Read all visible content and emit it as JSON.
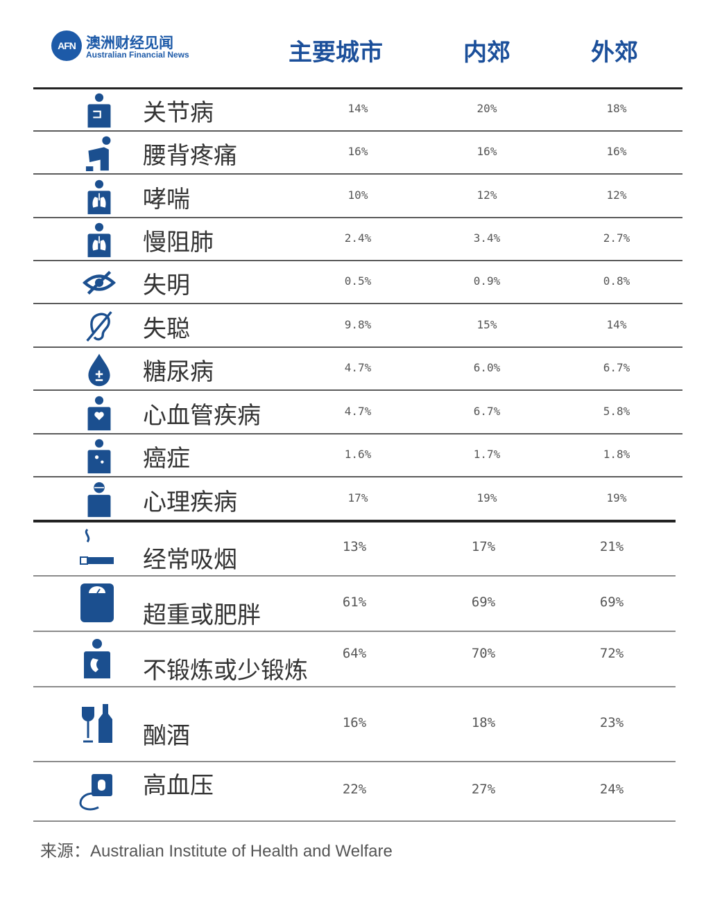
{
  "brand": {
    "logo_text": "AFN",
    "name_cn": "澳洲财经见闻",
    "name_en": "Australian Financial News"
  },
  "colors": {
    "accent": "#1d5aa8",
    "icon": "#1b4f8f",
    "header": "#1b4f9a"
  },
  "chart_data": {
    "type": "table",
    "columns": [
      "主要城市",
      "内郊",
      "外郊"
    ],
    "rows": [
      {
        "label": "关节病",
        "icon": "joint-pain-person-icon",
        "values": [
          "14%",
          "20%",
          "18%"
        ]
      },
      {
        "label": "腰背疼痛",
        "icon": "back-pain-person-icon",
        "values": [
          "16%",
          "16%",
          "16%"
        ]
      },
      {
        "label": "哮喘",
        "icon": "lungs-person-icon",
        "values": [
          "10%",
          "12%",
          "12%"
        ]
      },
      {
        "label": "慢阻肺",
        "icon": "lungs-person-icon",
        "values": [
          "2.4%",
          "3.4%",
          "2.7%"
        ]
      },
      {
        "label": "失明",
        "icon": "eye-crossed-icon",
        "values": [
          "0.5%",
          "0.9%",
          "0.8%"
        ]
      },
      {
        "label": "失聪",
        "icon": "ear-crossed-icon",
        "values": [
          "9.8%",
          "15%",
          "14%"
        ]
      },
      {
        "label": "糖尿病",
        "icon": "blood-drop-icon",
        "values": [
          "4.7%",
          "6.0%",
          "6.7%"
        ]
      },
      {
        "label": "心血管疾病",
        "icon": "heart-person-icon",
        "values": [
          "4.7%",
          "6.7%",
          "5.8%"
        ]
      },
      {
        "label": "癌症",
        "icon": "cancer-person-icon",
        "values": [
          "1.6%",
          "1.7%",
          "1.8%"
        ]
      },
      {
        "label": "心理疾病",
        "icon": "head-person-icon",
        "values": [
          "17%",
          "19%",
          "19%"
        ]
      },
      {
        "label": "经常吸烟",
        "icon": "cigarette-icon",
        "values": [
          "13%",
          "17%",
          "21%"
        ]
      },
      {
        "label": "超重或肥胖",
        "icon": "scale-icon",
        "values": [
          "61%",
          "69%",
          "69%"
        ]
      },
      {
        "label": "不锻炼或少锻炼",
        "icon": "inactive-person-icon",
        "values": [
          "64%",
          "70%",
          "72%"
        ]
      },
      {
        "label": "酗酒",
        "icon": "wine-bottle-icon",
        "values": [
          "16%",
          "18%",
          "23%"
        ]
      },
      {
        "label": "高血压",
        "icon": "blood-pressure-icon",
        "values": [
          "22%",
          "27%",
          "24%"
        ]
      }
    ]
  },
  "source": "来源：Australian Institute of Health and Welfare"
}
